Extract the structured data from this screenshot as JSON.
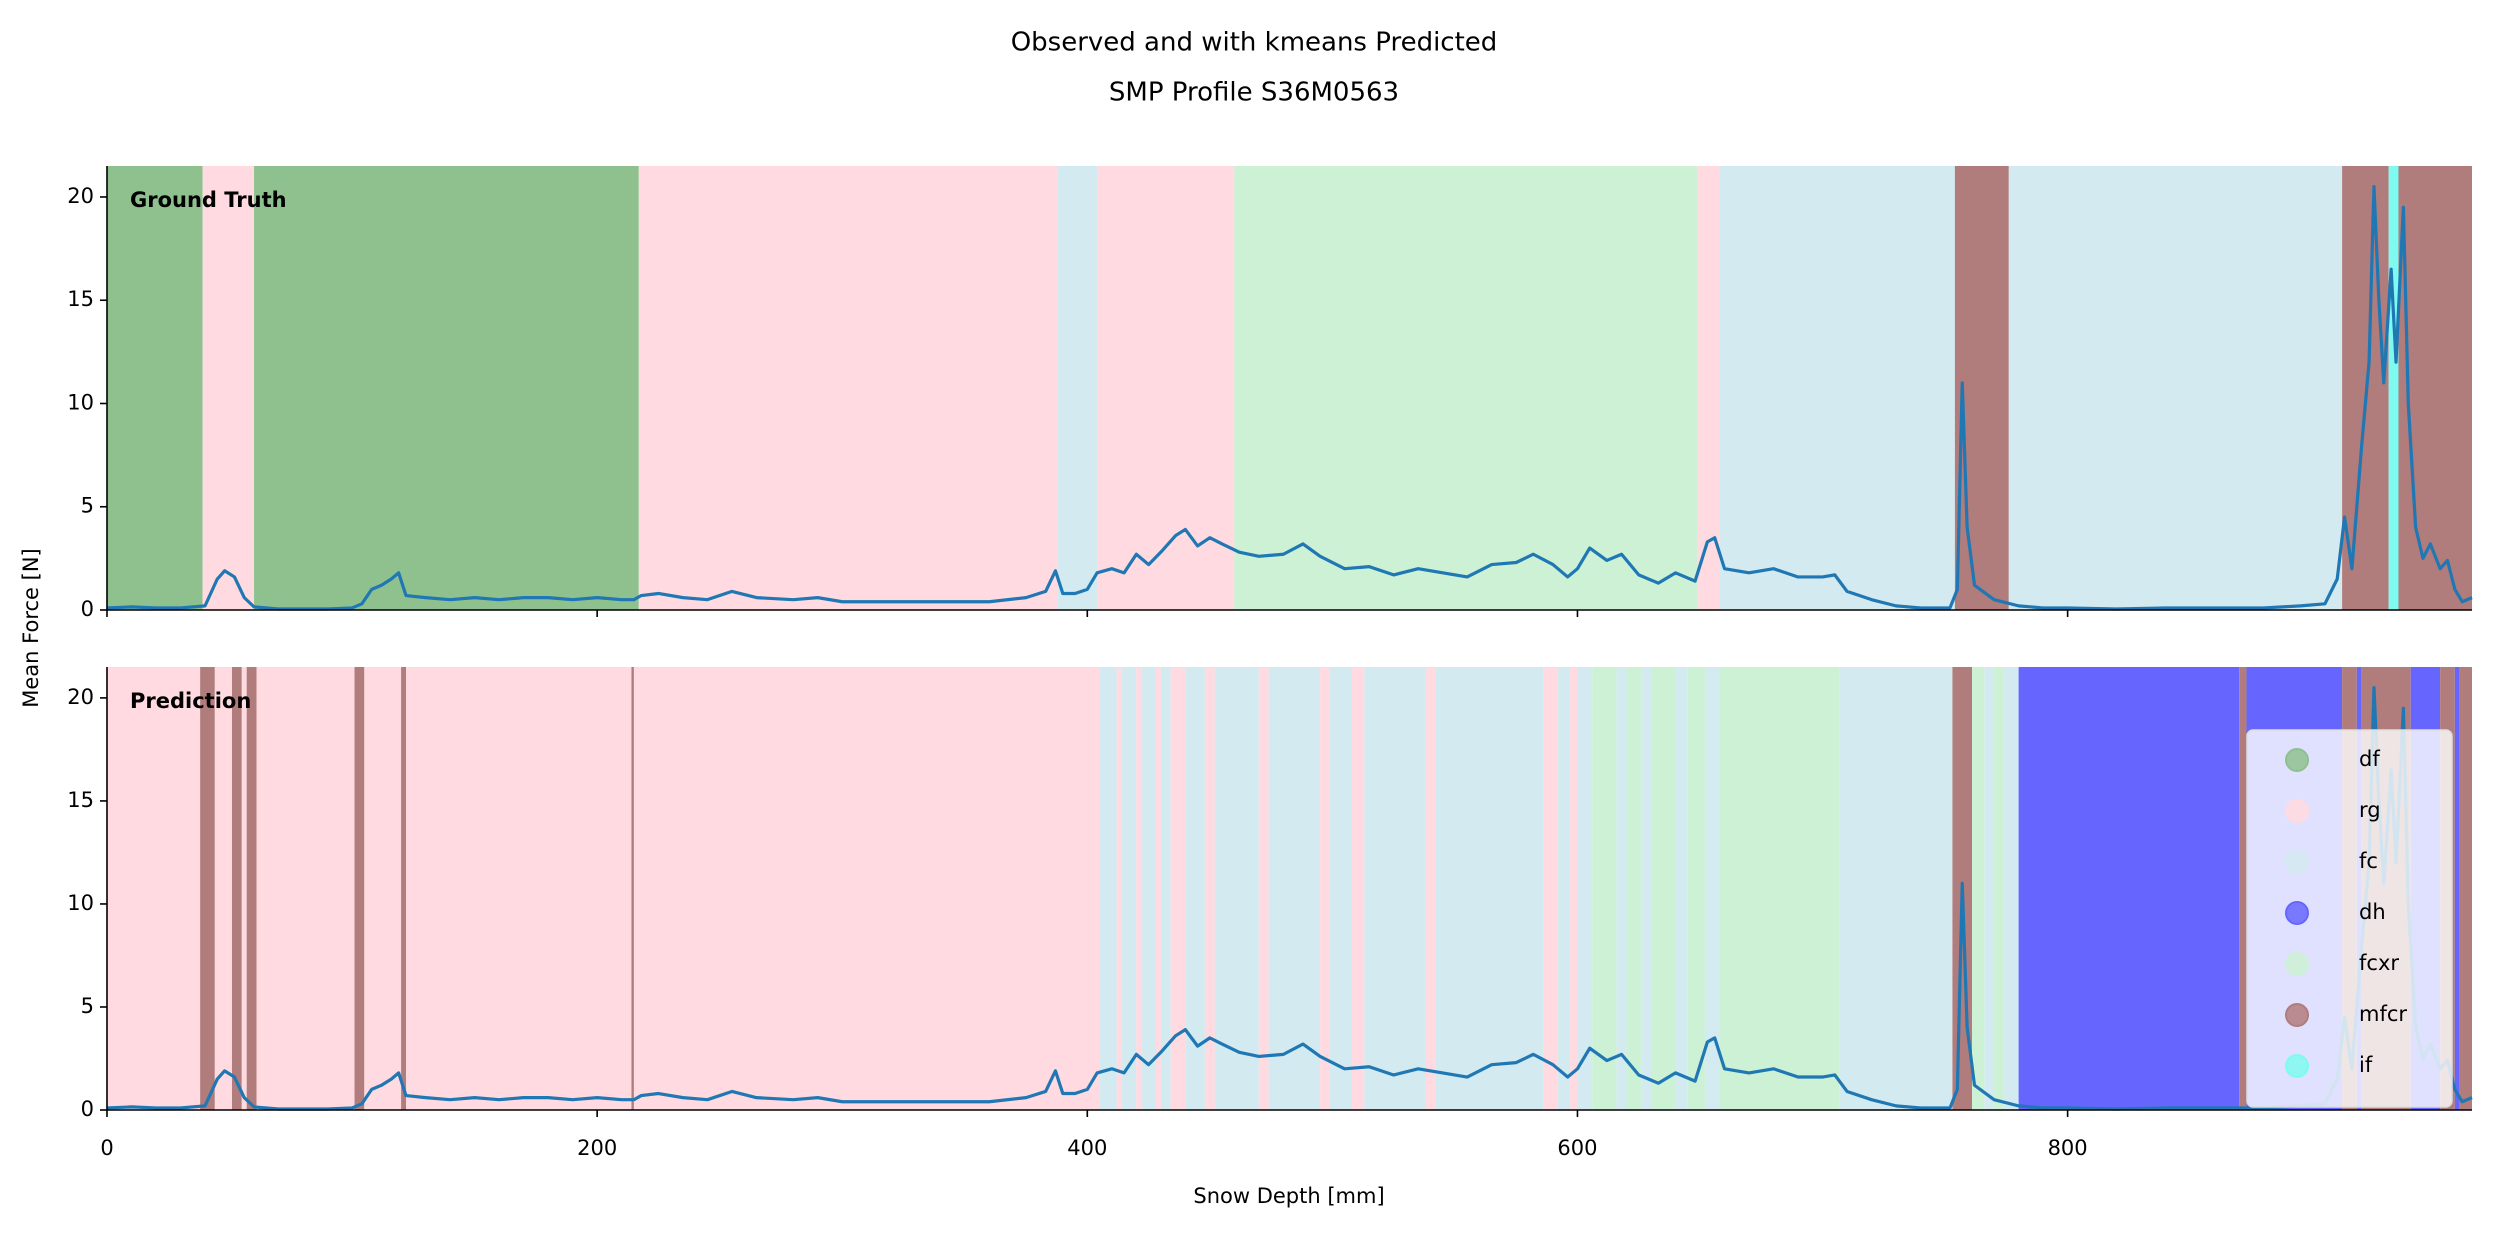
{
  "chart_data": {
    "type": "line",
    "title": "Observed and with kmeans Predicted",
    "subtitle": "SMP Profile S36M0563",
    "x_label": "Snow Depth [mm]",
    "y_label": "Mean Force [N]",
    "xlim": [
      0,
      965
    ],
    "xticks": [
      0,
      200,
      400,
      600,
      800
    ],
    "ylim": [
      0,
      21.5
    ],
    "yticks": [
      0,
      5,
      10,
      15,
      20
    ],
    "line_color": "#1f77b4",
    "legend": "right",
    "classes": [
      {
        "name": "df",
        "color": "#8fc18f"
      },
      {
        "name": "rg",
        "color": "#ffdae0"
      },
      {
        "name": "fc",
        "color": "#d3eaf0"
      },
      {
        "name": "dh",
        "color": "#6666ff"
      },
      {
        "name": "fcxr",
        "color": "#ccf1d5"
      },
      {
        "name": "mfcr",
        "color": "#b07c7c"
      },
      {
        "name": "if",
        "color": "#7ffaf0"
      }
    ],
    "x": [
      0,
      10,
      20,
      30,
      40,
      45,
      48,
      52,
      56,
      60,
      70,
      80,
      90,
      100,
      104,
      108,
      112,
      116,
      119,
      122,
      130,
      140,
      150,
      160,
      170,
      180,
      190,
      200,
      210,
      215,
      218,
      225,
      235,
      245,
      255,
      265,
      280,
      290,
      300,
      320,
      340,
      360,
      375,
      383,
      387,
      390,
      395,
      400,
      404,
      410,
      415,
      420,
      425,
      430,
      436,
      440,
      445,
      450,
      455,
      462,
      470,
      480,
      488,
      495,
      505,
      515,
      525,
      535,
      545,
      555,
      565,
      575,
      582,
      590,
      596,
      600,
      605,
      612,
      618,
      625,
      633,
      640,
      648,
      653,
      656,
      660,
      670,
      680,
      690,
      700,
      705,
      710,
      720,
      730,
      740,
      752,
      755,
      757,
      759,
      762,
      770,
      780,
      790,
      800,
      820,
      840,
      860,
      880,
      895,
      905,
      910,
      913,
      916,
      920,
      923,
      925,
      927,
      929,
      932,
      934,
      937,
      939,
      942,
      945,
      948,
      952,
      955,
      958,
      961,
      965
    ],
    "values": [
      0.1,
      0.15,
      0.1,
      0.1,
      0.2,
      1.5,
      1.9,
      1.6,
      0.6,
      0.15,
      0.05,
      0.05,
      0.05,
      0.1,
      0.3,
      1.0,
      1.2,
      1.5,
      1.8,
      0.7,
      0.6,
      0.5,
      0.6,
      0.5,
      0.6,
      0.6,
      0.5,
      0.6,
      0.5,
      0.5,
      0.7,
      0.8,
      0.6,
      0.5,
      0.9,
      0.6,
      0.5,
      0.6,
      0.4,
      0.4,
      0.4,
      0.4,
      0.6,
      0.9,
      1.9,
      0.8,
      0.8,
      1.0,
      1.8,
      2.0,
      1.8,
      2.7,
      2.2,
      2.8,
      3.6,
      3.9,
      3.1,
      3.5,
      3.2,
      2.8,
      2.6,
      2.7,
      3.2,
      2.6,
      2.0,
      2.1,
      1.7,
      2.0,
      1.8,
      1.6,
      2.2,
      2.3,
      2.7,
      2.2,
      1.6,
      2.0,
      3.0,
      2.4,
      2.7,
      1.7,
      1.3,
      1.8,
      1.4,
      3.3,
      3.5,
      2.0,
      1.8,
      2.0,
      1.6,
      1.6,
      1.7,
      0.9,
      0.5,
      0.2,
      0.1,
      0.1,
      1.0,
      11.0,
      4.0,
      1.2,
      0.5,
      0.2,
      0.1,
      0.1,
      0.05,
      0.1,
      0.1,
      0.1,
      0.2,
      0.3,
      1.5,
      4.5,
      2.0,
      8.0,
      12.0,
      20.5,
      15.0,
      11.0,
      16.5,
      12.0,
      19.5,
      10.0,
      4.0,
      2.5,
      3.2,
      2.0,
      2.4,
      1.0,
      0.4,
      0.6
    ],
    "panels": [
      {
        "label": "Ground Truth",
        "segments": [
          {
            "start": 0,
            "end": 39,
            "class": "df"
          },
          {
            "start": 39,
            "end": 60,
            "class": "rg"
          },
          {
            "start": 60,
            "end": 217,
            "class": "df"
          },
          {
            "start": 217,
            "end": 388,
            "class": "rg"
          },
          {
            "start": 388,
            "end": 404,
            "class": "fc"
          },
          {
            "start": 404,
            "end": 460,
            "class": "rg"
          },
          {
            "start": 460,
            "end": 649,
            "class": "fcxr"
          },
          {
            "start": 649,
            "end": 658,
            "class": "rg"
          },
          {
            "start": 658,
            "end": 754,
            "class": "fc"
          },
          {
            "start": 754,
            "end": 776,
            "class": "mfcr"
          },
          {
            "start": 776,
            "end": 912,
            "class": "fc"
          },
          {
            "start": 912,
            "end": 931,
            "class": "mfcr"
          },
          {
            "start": 931,
            "end": 935,
            "class": "if"
          },
          {
            "start": 935,
            "end": 965,
            "class": "mfcr"
          }
        ]
      },
      {
        "label": "Prediction",
        "segments": [
          {
            "start": 0,
            "end": 38,
            "class": "rg"
          },
          {
            "start": 38,
            "end": 44,
            "class": "mfcr"
          },
          {
            "start": 44,
            "end": 51,
            "class": "rg"
          },
          {
            "start": 51,
            "end": 55,
            "class": "mfcr"
          },
          {
            "start": 55,
            "end": 57,
            "class": "rg"
          },
          {
            "start": 57,
            "end": 61,
            "class": "mfcr"
          },
          {
            "start": 61,
            "end": 101,
            "class": "rg"
          },
          {
            "start": 101,
            "end": 105,
            "class": "mfcr"
          },
          {
            "start": 105,
            "end": 120,
            "class": "rg"
          },
          {
            "start": 120,
            "end": 122,
            "class": "mfcr"
          },
          {
            "start": 122,
            "end": 214,
            "class": "rg"
          },
          {
            "start": 214,
            "end": 215,
            "class": "mfcr"
          },
          {
            "start": 215,
            "end": 405,
            "class": "rg"
          },
          {
            "start": 405,
            "end": 412,
            "class": "fc"
          },
          {
            "start": 412,
            "end": 414,
            "class": "rg"
          },
          {
            "start": 414,
            "end": 420,
            "class": "fc"
          },
          {
            "start": 420,
            "end": 422,
            "class": "rg"
          },
          {
            "start": 422,
            "end": 428,
            "class": "fc"
          },
          {
            "start": 428,
            "end": 430,
            "class": "rg"
          },
          {
            "start": 430,
            "end": 434,
            "class": "fc"
          },
          {
            "start": 434,
            "end": 440,
            "class": "rg"
          },
          {
            "start": 440,
            "end": 448,
            "class": "fc"
          },
          {
            "start": 448,
            "end": 452,
            "class": "rg"
          },
          {
            "start": 452,
            "end": 470,
            "class": "fc"
          },
          {
            "start": 470,
            "end": 474,
            "class": "rg"
          },
          {
            "start": 474,
            "end": 495,
            "class": "fc"
          },
          {
            "start": 495,
            "end": 499,
            "class": "rg"
          },
          {
            "start": 499,
            "end": 508,
            "class": "fc"
          },
          {
            "start": 508,
            "end": 513,
            "class": "rg"
          },
          {
            "start": 513,
            "end": 538,
            "class": "fc"
          },
          {
            "start": 538,
            "end": 542,
            "class": "rg"
          },
          {
            "start": 542,
            "end": 586,
            "class": "fc"
          },
          {
            "start": 586,
            "end": 592,
            "class": "rg"
          },
          {
            "start": 592,
            "end": 597,
            "class": "fc"
          },
          {
            "start": 597,
            "end": 600,
            "class": "rg"
          },
          {
            "start": 600,
            "end": 606,
            "class": "fc"
          },
          {
            "start": 606,
            "end": 616,
            "class": "fcxr"
          },
          {
            "start": 616,
            "end": 620,
            "class": "fc"
          },
          {
            "start": 620,
            "end": 626,
            "class": "fcxr"
          },
          {
            "start": 626,
            "end": 630,
            "class": "fc"
          },
          {
            "start": 630,
            "end": 640,
            "class": "fcxr"
          },
          {
            "start": 640,
            "end": 645,
            "class": "fc"
          },
          {
            "start": 645,
            "end": 652,
            "class": "fcxr"
          },
          {
            "start": 652,
            "end": 658,
            "class": "fc"
          },
          {
            "start": 658,
            "end": 707,
            "class": "fcxr"
          },
          {
            "start": 707,
            "end": 753,
            "class": "fc"
          },
          {
            "start": 753,
            "end": 761,
            "class": "mfcr"
          },
          {
            "start": 761,
            "end": 766,
            "class": "fcxr"
          },
          {
            "start": 766,
            "end": 770,
            "class": "fc"
          },
          {
            "start": 770,
            "end": 774,
            "class": "fcxr"
          },
          {
            "start": 774,
            "end": 780,
            "class": "fc"
          },
          {
            "start": 780,
            "end": 870,
            "class": "dh"
          },
          {
            "start": 870,
            "end": 873,
            "class": "mfcr"
          },
          {
            "start": 873,
            "end": 912,
            "class": "dh"
          },
          {
            "start": 912,
            "end": 918,
            "class": "mfcr"
          },
          {
            "start": 918,
            "end": 920,
            "class": "dh"
          },
          {
            "start": 920,
            "end": 940,
            "class": "mfcr"
          },
          {
            "start": 940,
            "end": 952,
            "class": "dh"
          },
          {
            "start": 952,
            "end": 958,
            "class": "mfcr"
          },
          {
            "start": 958,
            "end": 960,
            "class": "dh"
          },
          {
            "start": 960,
            "end": 965,
            "class": "mfcr"
          }
        ]
      }
    ]
  }
}
